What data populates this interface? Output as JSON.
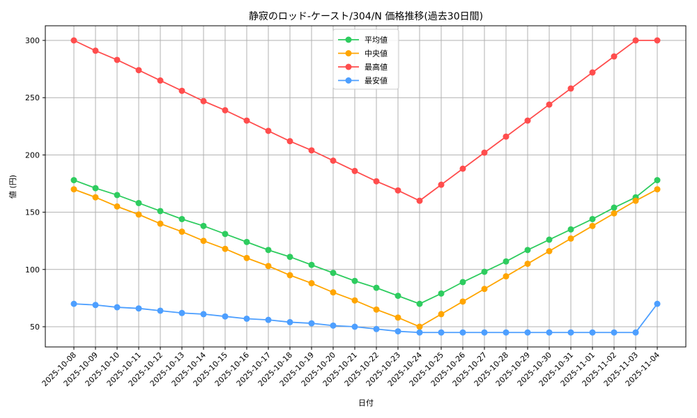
{
  "chart_data": {
    "type": "line",
    "title": "静寂のロッド-ケースト/304/N 価格推移(過去30日間)",
    "xlabel": "日付",
    "ylabel": "値 (円)",
    "ylim": [
      32,
      313
    ],
    "yticks": [
      50,
      100,
      150,
      200,
      250,
      300
    ],
    "grid": true,
    "legend_position": "upper center",
    "categories": [
      "2025-10-08",
      "2025-10-09",
      "2025-10-10",
      "2025-10-11",
      "2025-10-12",
      "2025-10-13",
      "2025-10-14",
      "2025-10-15",
      "2025-10-16",
      "2025-10-17",
      "2025-10-18",
      "2025-10-19",
      "2025-10-20",
      "2025-10-21",
      "2025-10-22",
      "2025-10-23",
      "2025-10-24",
      "2025-10-25",
      "2025-10-26",
      "2025-10-27",
      "2025-10-28",
      "2025-10-29",
      "2025-10-30",
      "2025-10-31",
      "2025-11-01",
      "2025-11-02",
      "2025-11-03",
      "2025-11-04"
    ],
    "series": [
      {
        "name": "平均値",
        "color": "#2ecc5f",
        "values": [
          178,
          171,
          165,
          158,
          151,
          144,
          138,
          131,
          124,
          117,
          111,
          104,
          97,
          90,
          84,
          77,
          70,
          79,
          89,
          98,
          107,
          117,
          126,
          135,
          144,
          154,
          163,
          178
        ]
      },
      {
        "name": "中央値",
        "color": "#ffa500",
        "values": [
          170,
          163,
          155,
          148,
          140,
          133,
          125,
          118,
          110,
          103,
          95,
          88,
          80,
          73,
          65,
          58,
          50,
          61,
          72,
          83,
          94,
          105,
          116,
          127,
          138,
          149,
          160,
          170
        ]
      },
      {
        "name": "最高値",
        "color": "#ff4d4d",
        "values": [
          300,
          291,
          283,
          274,
          265,
          256,
          247,
          239,
          230,
          221,
          212,
          204,
          195,
          186,
          177,
          169,
          160,
          174,
          188,
          202,
          216,
          230,
          244,
          258,
          272,
          286,
          300,
          300
        ]
      },
      {
        "name": "最安値",
        "color": "#4d9fff",
        "values": [
          70,
          69,
          67,
          66,
          64,
          62,
          61,
          59,
          57,
          56,
          54,
          53,
          51,
          50,
          48,
          46,
          45,
          45,
          45,
          45,
          45,
          45,
          45,
          45,
          45,
          45,
          45,
          70
        ]
      }
    ]
  }
}
